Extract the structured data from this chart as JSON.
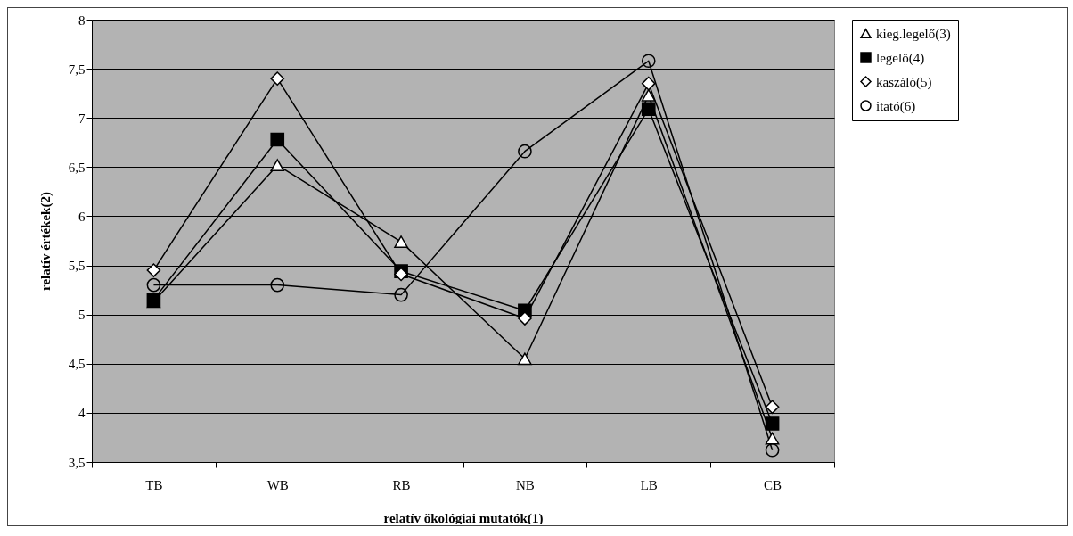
{
  "chart_data": {
    "type": "line",
    "xlabel": "relatív ökológiai mutatók(1)",
    "ylabel": "relatív értékek(2)",
    "categories": [
      "TB",
      "WB",
      "RB",
      "NB",
      "LB",
      "CB"
    ],
    "ylim": [
      3.5,
      8
    ],
    "yticks": [
      {
        "value": 3.5,
        "label": "3,5"
      },
      4,
      {
        "value": 4.5,
        "label": "4,5"
      },
      5,
      {
        "value": 5.5,
        "label": "5,5"
      },
      6,
      {
        "value": 6.5,
        "label": "6,5"
      },
      7,
      {
        "value": 7.5,
        "label": "7,5"
      },
      8
    ],
    "grid": "y",
    "legend": "right",
    "line_style": "solid",
    "series": [
      {
        "name": "kieg.legelő(3)",
        "color": "#000000",
        "marker": "triangle",
        "values": [
          5.13,
          6.52,
          5.74,
          4.55,
          7.23,
          3.74
        ]
      },
      {
        "name": "legelő(4)",
        "color": "#000000",
        "marker": "square",
        "values": [
          5.15,
          6.78,
          5.44,
          5.04,
          7.09,
          3.89
        ]
      },
      {
        "name": "kaszáló(5)",
        "color": "#000000",
        "marker": "diamond",
        "values": [
          5.45,
          7.4,
          5.41,
          4.96,
          7.35,
          4.06
        ]
      },
      {
        "name": "itató(6)",
        "color": "#000000",
        "marker": "circle",
        "values": [
          5.3,
          5.3,
          5.2,
          6.66,
          7.58,
          3.62
        ]
      }
    ]
  }
}
